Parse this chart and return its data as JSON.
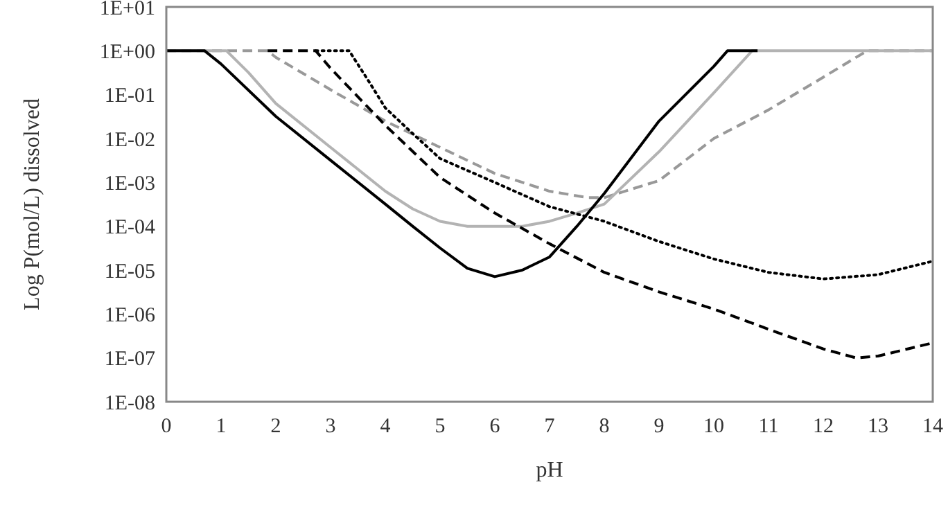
{
  "chart_data": {
    "type": "line",
    "xlabel": "pH",
    "ylabel": "Log P(mol/L) dissolved",
    "log": "y",
    "xlim": [
      0,
      14
    ],
    "xticks": [
      0,
      1,
      2,
      3,
      4,
      5,
      6,
      7,
      8,
      9,
      10,
      11,
      12,
      13,
      14
    ],
    "ylim": [
      1e-08,
      10
    ],
    "yticks": [
      {
        "value": 1e-08,
        "label": "1E-08"
      },
      {
        "value": 1e-07,
        "label": "1E-07"
      },
      {
        "value": 1e-06,
        "label": "1E-06"
      },
      {
        "value": 1e-05,
        "label": "1E-05"
      },
      {
        "value": 0.0001,
        "label": "1E-04"
      },
      {
        "value": 0.001,
        "label": "1E-03"
      },
      {
        "value": 0.01,
        "label": "1E-02"
      },
      {
        "value": 0.1,
        "label": "1E-01"
      },
      {
        "value": 1,
        "label": "1E+00"
      },
      {
        "value": 10,
        "label": "1E+01"
      }
    ],
    "series": [
      {
        "color": "#999999",
        "line_style": "dashed",
        "x": [
          0,
          1.85,
          2,
          3,
          4,
          5,
          6,
          7,
          7.7,
          8,
          9,
          10,
          11,
          12,
          12.8,
          14
        ],
        "values": [
          1,
          1,
          0.71,
          0.13,
          0.025,
          0.0063,
          0.0016,
          0.00063,
          0.00045,
          0.00045,
          0.0011,
          0.01,
          0.045,
          0.25,
          1,
          1
        ]
      },
      {
        "color": "#b3b3b3",
        "line_style": "solid",
        "x": [
          0,
          1.1,
          1.5,
          2,
          3,
          4,
          4.5,
          5,
          5.5,
          6,
          6.5,
          7,
          7.5,
          8,
          9,
          10,
          10.7,
          14
        ],
        "values": [
          1,
          1,
          0.32,
          0.063,
          0.0063,
          0.00063,
          0.00025,
          0.00013,
          0.0001,
          0.0001,
          0.0001,
          0.00013,
          0.0002,
          0.00032,
          0.005,
          0.11,
          1,
          1
        ]
      },
      {
        "color": "#000000",
        "line_style": "solid",
        "x": [
          0,
          0.7,
          1,
          2,
          3,
          4,
          4.5,
          5,
          5.5,
          6,
          6.5,
          7,
          7.5,
          8,
          9,
          10,
          10.25,
          10.8
        ],
        "values": [
          1,
          1,
          0.5,
          0.032,
          0.0032,
          0.00032,
          0.0001,
          3.2e-05,
          1.1e-05,
          7.1e-06,
          1e-05,
          2e-05,
          0.0001,
          0.00056,
          0.025,
          0.44,
          1,
          1
        ]
      },
      {
        "color": "#000000",
        "line_style": "dashed",
        "x": [
          1.85,
          2.73,
          3,
          4,
          5,
          6,
          7,
          8,
          9,
          10,
          11,
          12,
          12.6,
          13,
          14
        ],
        "values": [
          1,
          1,
          0.4,
          0.02,
          0.0013,
          0.0002,
          4e-05,
          8.9e-06,
          3.2e-06,
          1.3e-06,
          4.5e-07,
          1.6e-07,
          1e-07,
          1.1e-07,
          2.2e-07
        ]
      },
      {
        "color": "#000000",
        "line_style": "dotted",
        "x": [
          2.73,
          3.34,
          3.7,
          4,
          4.5,
          5,
          6,
          7,
          8,
          9,
          10,
          11,
          12,
          13,
          14
        ],
        "values": [
          1,
          1,
          0.2,
          0.05,
          0.013,
          0.0035,
          0.001,
          0.00028,
          0.00013,
          4.5e-05,
          1.8e-05,
          8.9e-06,
          6.3e-06,
          7.9e-06,
          1.6e-05
        ]
      }
    ]
  }
}
